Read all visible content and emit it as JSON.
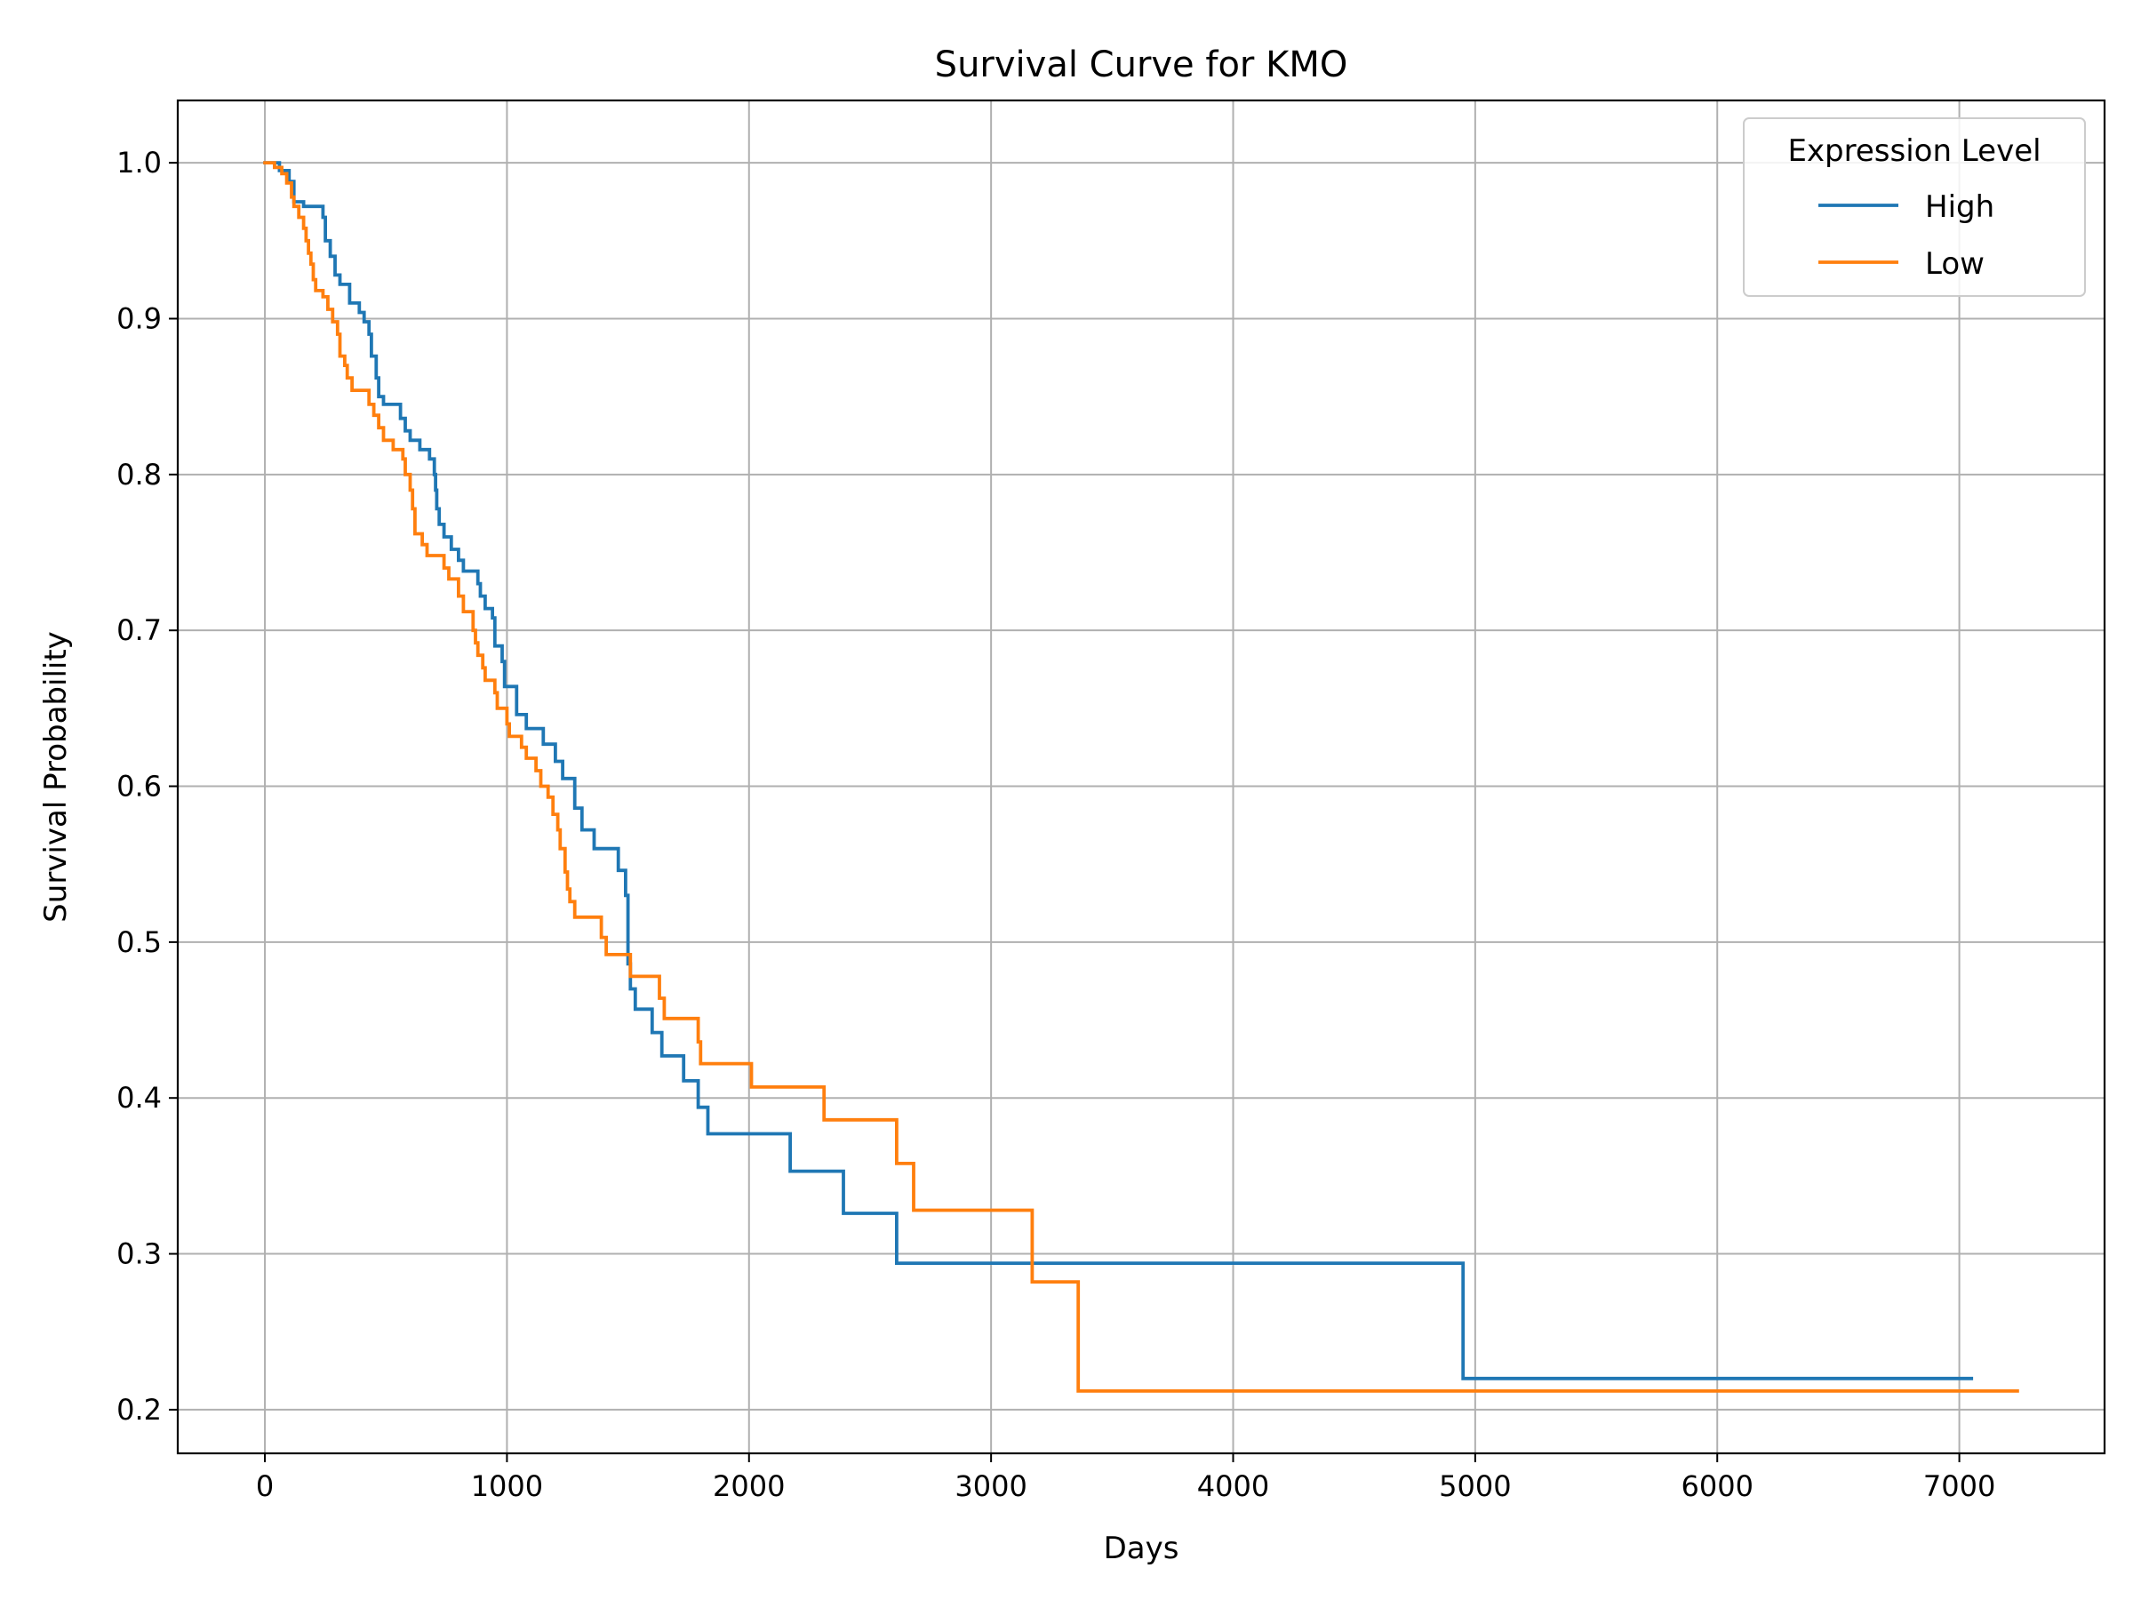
{
  "chart_data": {
    "type": "line",
    "title": "Survival Curve for KMO",
    "xlabel": "Days",
    "ylabel": "Survival Probability",
    "xlim": [
      -360,
      7600
    ],
    "ylim": [
      0.172,
      1.04
    ],
    "x_ticks": [
      0,
      1000,
      2000,
      3000,
      4000,
      5000,
      6000,
      7000
    ],
    "y_ticks": [
      0.2,
      0.3,
      0.4,
      0.5,
      0.6,
      0.7,
      0.8,
      0.9,
      1.0
    ],
    "x_tick_labels": [
      "0",
      "1000",
      "2000",
      "3000",
      "4000",
      "5000",
      "6000",
      "7000"
    ],
    "y_tick_labels": [
      "0.2",
      "0.3",
      "0.4",
      "0.5",
      "0.6",
      "0.7",
      "0.8",
      "0.9",
      "1.0"
    ],
    "grid": true,
    "legend": {
      "title": "Expression Level",
      "position": "top-right"
    },
    "series": [
      {
        "name": "High",
        "color": "#1f77b4",
        "steps": [
          [
            0,
            1.0
          ],
          [
            60,
            0.995
          ],
          [
            100,
            0.988
          ],
          [
            120,
            0.975
          ],
          [
            160,
            0.972
          ],
          [
            240,
            0.965
          ],
          [
            250,
            0.95
          ],
          [
            270,
            0.94
          ],
          [
            290,
            0.928
          ],
          [
            310,
            0.922
          ],
          [
            350,
            0.91
          ],
          [
            390,
            0.904
          ],
          [
            410,
            0.898
          ],
          [
            430,
            0.89
          ],
          [
            440,
            0.876
          ],
          [
            460,
            0.862
          ],
          [
            470,
            0.85
          ],
          [
            490,
            0.845
          ],
          [
            560,
            0.836
          ],
          [
            580,
            0.828
          ],
          [
            600,
            0.822
          ],
          [
            640,
            0.816
          ],
          [
            680,
            0.81
          ],
          [
            700,
            0.8
          ],
          [
            705,
            0.79
          ],
          [
            710,
            0.778
          ],
          [
            720,
            0.768
          ],
          [
            740,
            0.76
          ],
          [
            770,
            0.752
          ],
          [
            800,
            0.745
          ],
          [
            820,
            0.738
          ],
          [
            880,
            0.73
          ],
          [
            890,
            0.722
          ],
          [
            910,
            0.714
          ],
          [
            940,
            0.708
          ],
          [
            950,
            0.69
          ],
          [
            980,
            0.68
          ],
          [
            990,
            0.664
          ],
          [
            1040,
            0.646
          ],
          [
            1080,
            0.637
          ],
          [
            1150,
            0.627
          ],
          [
            1200,
            0.616
          ],
          [
            1230,
            0.605
          ],
          [
            1280,
            0.586
          ],
          [
            1310,
            0.572
          ],
          [
            1360,
            0.56
          ],
          [
            1460,
            0.546
          ],
          [
            1490,
            0.53
          ],
          [
            1500,
            0.486
          ],
          [
            1510,
            0.47
          ],
          [
            1530,
            0.457
          ],
          [
            1600,
            0.442
          ],
          [
            1640,
            0.427
          ],
          [
            1730,
            0.411
          ],
          [
            1790,
            0.394
          ],
          [
            1830,
            0.377
          ],
          [
            2170,
            0.353
          ],
          [
            2390,
            0.326
          ],
          [
            2610,
            0.294
          ],
          [
            4950,
            0.22
          ],
          [
            7050,
            0.22
          ]
        ]
      },
      {
        "name": "Low",
        "color": "#ff7f0e",
        "steps": [
          [
            0,
            1.0
          ],
          [
            40,
            0.997
          ],
          [
            70,
            0.993
          ],
          [
            90,
            0.987
          ],
          [
            110,
            0.978
          ],
          [
            120,
            0.972
          ],
          [
            140,
            0.965
          ],
          [
            160,
            0.958
          ],
          [
            170,
            0.95
          ],
          [
            180,
            0.942
          ],
          [
            190,
            0.935
          ],
          [
            200,
            0.925
          ],
          [
            210,
            0.918
          ],
          [
            240,
            0.914
          ],
          [
            260,
            0.906
          ],
          [
            280,
            0.898
          ],
          [
            300,
            0.89
          ],
          [
            310,
            0.876
          ],
          [
            330,
            0.87
          ],
          [
            340,
            0.862
          ],
          [
            360,
            0.854
          ],
          [
            430,
            0.845
          ],
          [
            450,
            0.838
          ],
          [
            470,
            0.83
          ],
          [
            490,
            0.822
          ],
          [
            530,
            0.816
          ],
          [
            570,
            0.81
          ],
          [
            580,
            0.8
          ],
          [
            600,
            0.79
          ],
          [
            610,
            0.778
          ],
          [
            620,
            0.762
          ],
          [
            650,
            0.755
          ],
          [
            670,
            0.748
          ],
          [
            740,
            0.74
          ],
          [
            760,
            0.733
          ],
          [
            800,
            0.722
          ],
          [
            820,
            0.712
          ],
          [
            860,
            0.7
          ],
          [
            870,
            0.692
          ],
          [
            880,
            0.684
          ],
          [
            900,
            0.676
          ],
          [
            910,
            0.668
          ],
          [
            950,
            0.66
          ],
          [
            960,
            0.65
          ],
          [
            1000,
            0.64
          ],
          [
            1010,
            0.632
          ],
          [
            1060,
            0.625
          ],
          [
            1080,
            0.618
          ],
          [
            1120,
            0.61
          ],
          [
            1140,
            0.6
          ],
          [
            1170,
            0.593
          ],
          [
            1190,
            0.582
          ],
          [
            1210,
            0.572
          ],
          [
            1220,
            0.56
          ],
          [
            1240,
            0.545
          ],
          [
            1250,
            0.534
          ],
          [
            1260,
            0.526
          ],
          [
            1280,
            0.516
          ],
          [
            1390,
            0.503
          ],
          [
            1410,
            0.492
          ],
          [
            1510,
            0.478
          ],
          [
            1630,
            0.464
          ],
          [
            1650,
            0.451
          ],
          [
            1790,
            0.436
          ],
          [
            1800,
            0.422
          ],
          [
            2010,
            0.407
          ],
          [
            2310,
            0.386
          ],
          [
            2610,
            0.358
          ],
          [
            2680,
            0.328
          ],
          [
            3170,
            0.282
          ],
          [
            3360,
            0.212
          ],
          [
            7240,
            0.212
          ]
        ]
      }
    ]
  }
}
